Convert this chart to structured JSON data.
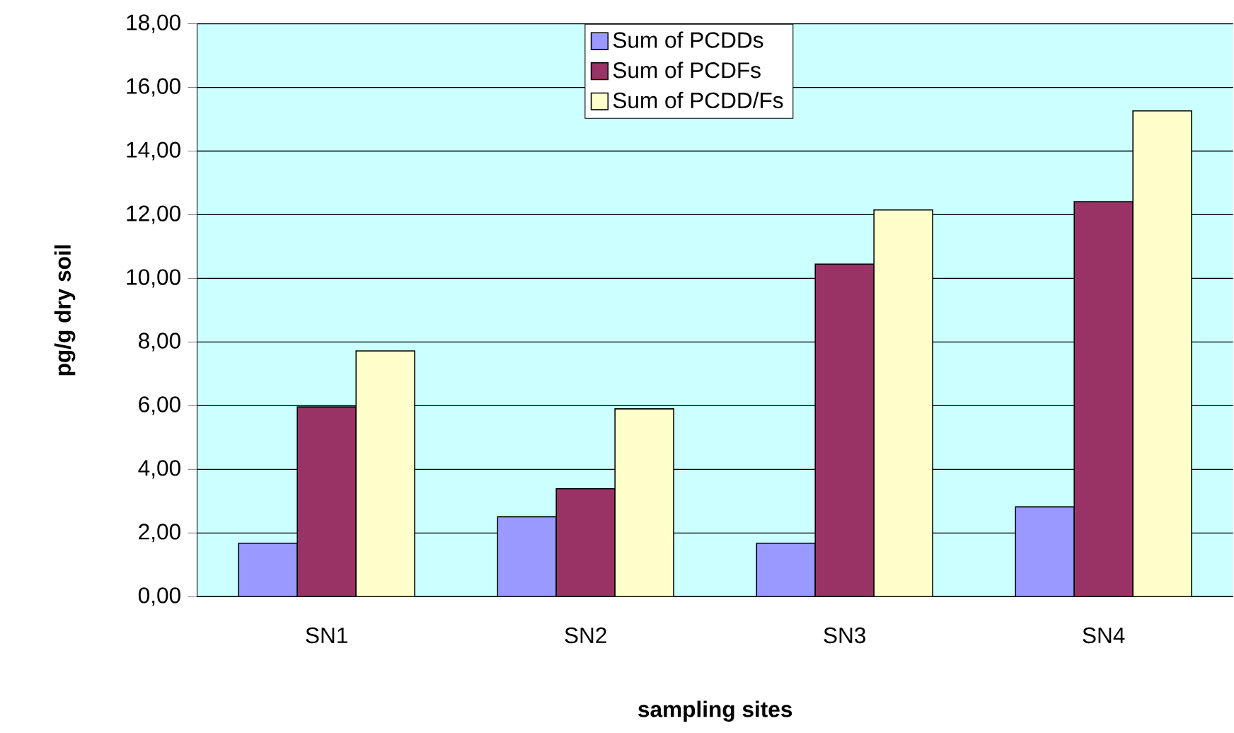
{
  "chart_data": {
    "type": "bar",
    "xlabel": "sampling sites",
    "ylabel": "pg/g dry soil",
    "categories": [
      "SN1",
      "SN2",
      "SN3",
      "SN4"
    ],
    "series": [
      {
        "name": "Sum of PCDDs",
        "color": "#9999ff",
        "values": [
          1.68,
          2.51,
          1.68,
          2.82
        ]
      },
      {
        "name": "Sum of PCDFs",
        "color": "#993366",
        "values": [
          5.96,
          3.39,
          10.45,
          12.41
        ]
      },
      {
        "name": "Sum of PCDD/Fs",
        "color": "#ffffcc",
        "values": [
          7.72,
          5.9,
          12.15,
          15.26
        ]
      }
    ],
    "ylim": [
      0,
      18
    ],
    "yticks": [
      {
        "value": 0,
        "label": "0,00"
      },
      {
        "value": 2,
        "label": "2,00"
      },
      {
        "value": 4,
        "label": "4,00"
      },
      {
        "value": 6,
        "label": "6,00"
      },
      {
        "value": 8,
        "label": "8,00"
      },
      {
        "value": 10,
        "label": "10,00"
      },
      {
        "value": 12,
        "label": "12,00"
      },
      {
        "value": 14,
        "label": "14,00"
      },
      {
        "value": 16,
        "label": "16,00"
      },
      {
        "value": 18,
        "label": "18,00"
      }
    ],
    "grid": "y",
    "legend": "top"
  }
}
